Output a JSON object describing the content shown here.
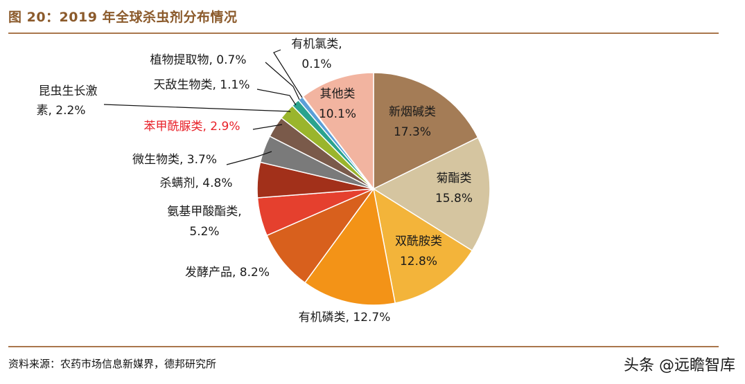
{
  "title": "图 20：2019 年全球杀虫剂分布情况",
  "source": "资料来源：农药市场信息新媒界，德邦研究所",
  "watermark": "头条 @远瞻智库",
  "chart_data": {
    "type": "pie",
    "series": [
      {
        "name": "新烟碱类",
        "value": 17.3,
        "value_label": "17.3%",
        "color": "#a47c56",
        "label_color": "#1a1a1a"
      },
      {
        "name": "菊酯类",
        "value": 15.8,
        "value_label": "15.8%",
        "color": "#d5c5a0",
        "label_color": "#1a1a1a"
      },
      {
        "name": "双酰胺类",
        "value": 12.8,
        "value_label": "12.8%",
        "color": "#f3b43a",
        "label_color": "#1a1a1a"
      },
      {
        "name": "有机磷类",
        "value": 12.7,
        "value_label": "12.7%",
        "color": "#f39317",
        "label_color": "#1a1a1a"
      },
      {
        "name": "发酵产品",
        "value": 8.2,
        "value_label": "8.2%",
        "color": "#d8601d",
        "label_color": "#1a1a1a"
      },
      {
        "name": "氨基甲酸酯类",
        "value": 5.2,
        "value_label": "5.2%",
        "color": "#e5402e",
        "label_color": "#1a1a1a"
      },
      {
        "name": "杀螨剂",
        "value": 4.8,
        "value_label": "4.8%",
        "color": "#a2301a",
        "label_color": "#1a1a1a"
      },
      {
        "name": "微生物类",
        "value": 3.7,
        "value_label": "3.7%",
        "color": "#7a7a7a",
        "label_color": "#1a1a1a"
      },
      {
        "name": "苯甲酰脲类",
        "value": 2.9,
        "value_label": "2.9%",
        "color": "#7a5a4a",
        "label_color": "#e8222a"
      },
      {
        "name": "昆虫生长激素",
        "value": 2.2,
        "value_label": "2.2%",
        "color": "#9ab52c",
        "label_color": "#1a1a1a"
      },
      {
        "name": "天敌生物类",
        "value": 1.1,
        "value_label": "1.1%",
        "color": "#2aa38e",
        "label_color": "#1a1a1a"
      },
      {
        "name": "植物提取物",
        "value": 0.7,
        "value_label": "0.7%",
        "color": "#5a9fd8",
        "label_color": "#1a1a1a"
      },
      {
        "name": "有机氯类",
        "value": 0.1,
        "value_label": "0.1%",
        "color": "#2a4a9a",
        "label_color": "#1a1a1a"
      },
      {
        "name": "其他类",
        "value": 10.1,
        "value_label": "10.1%",
        "color": "#f2b4a0",
        "label_color": "#1a1a1a"
      }
    ]
  }
}
